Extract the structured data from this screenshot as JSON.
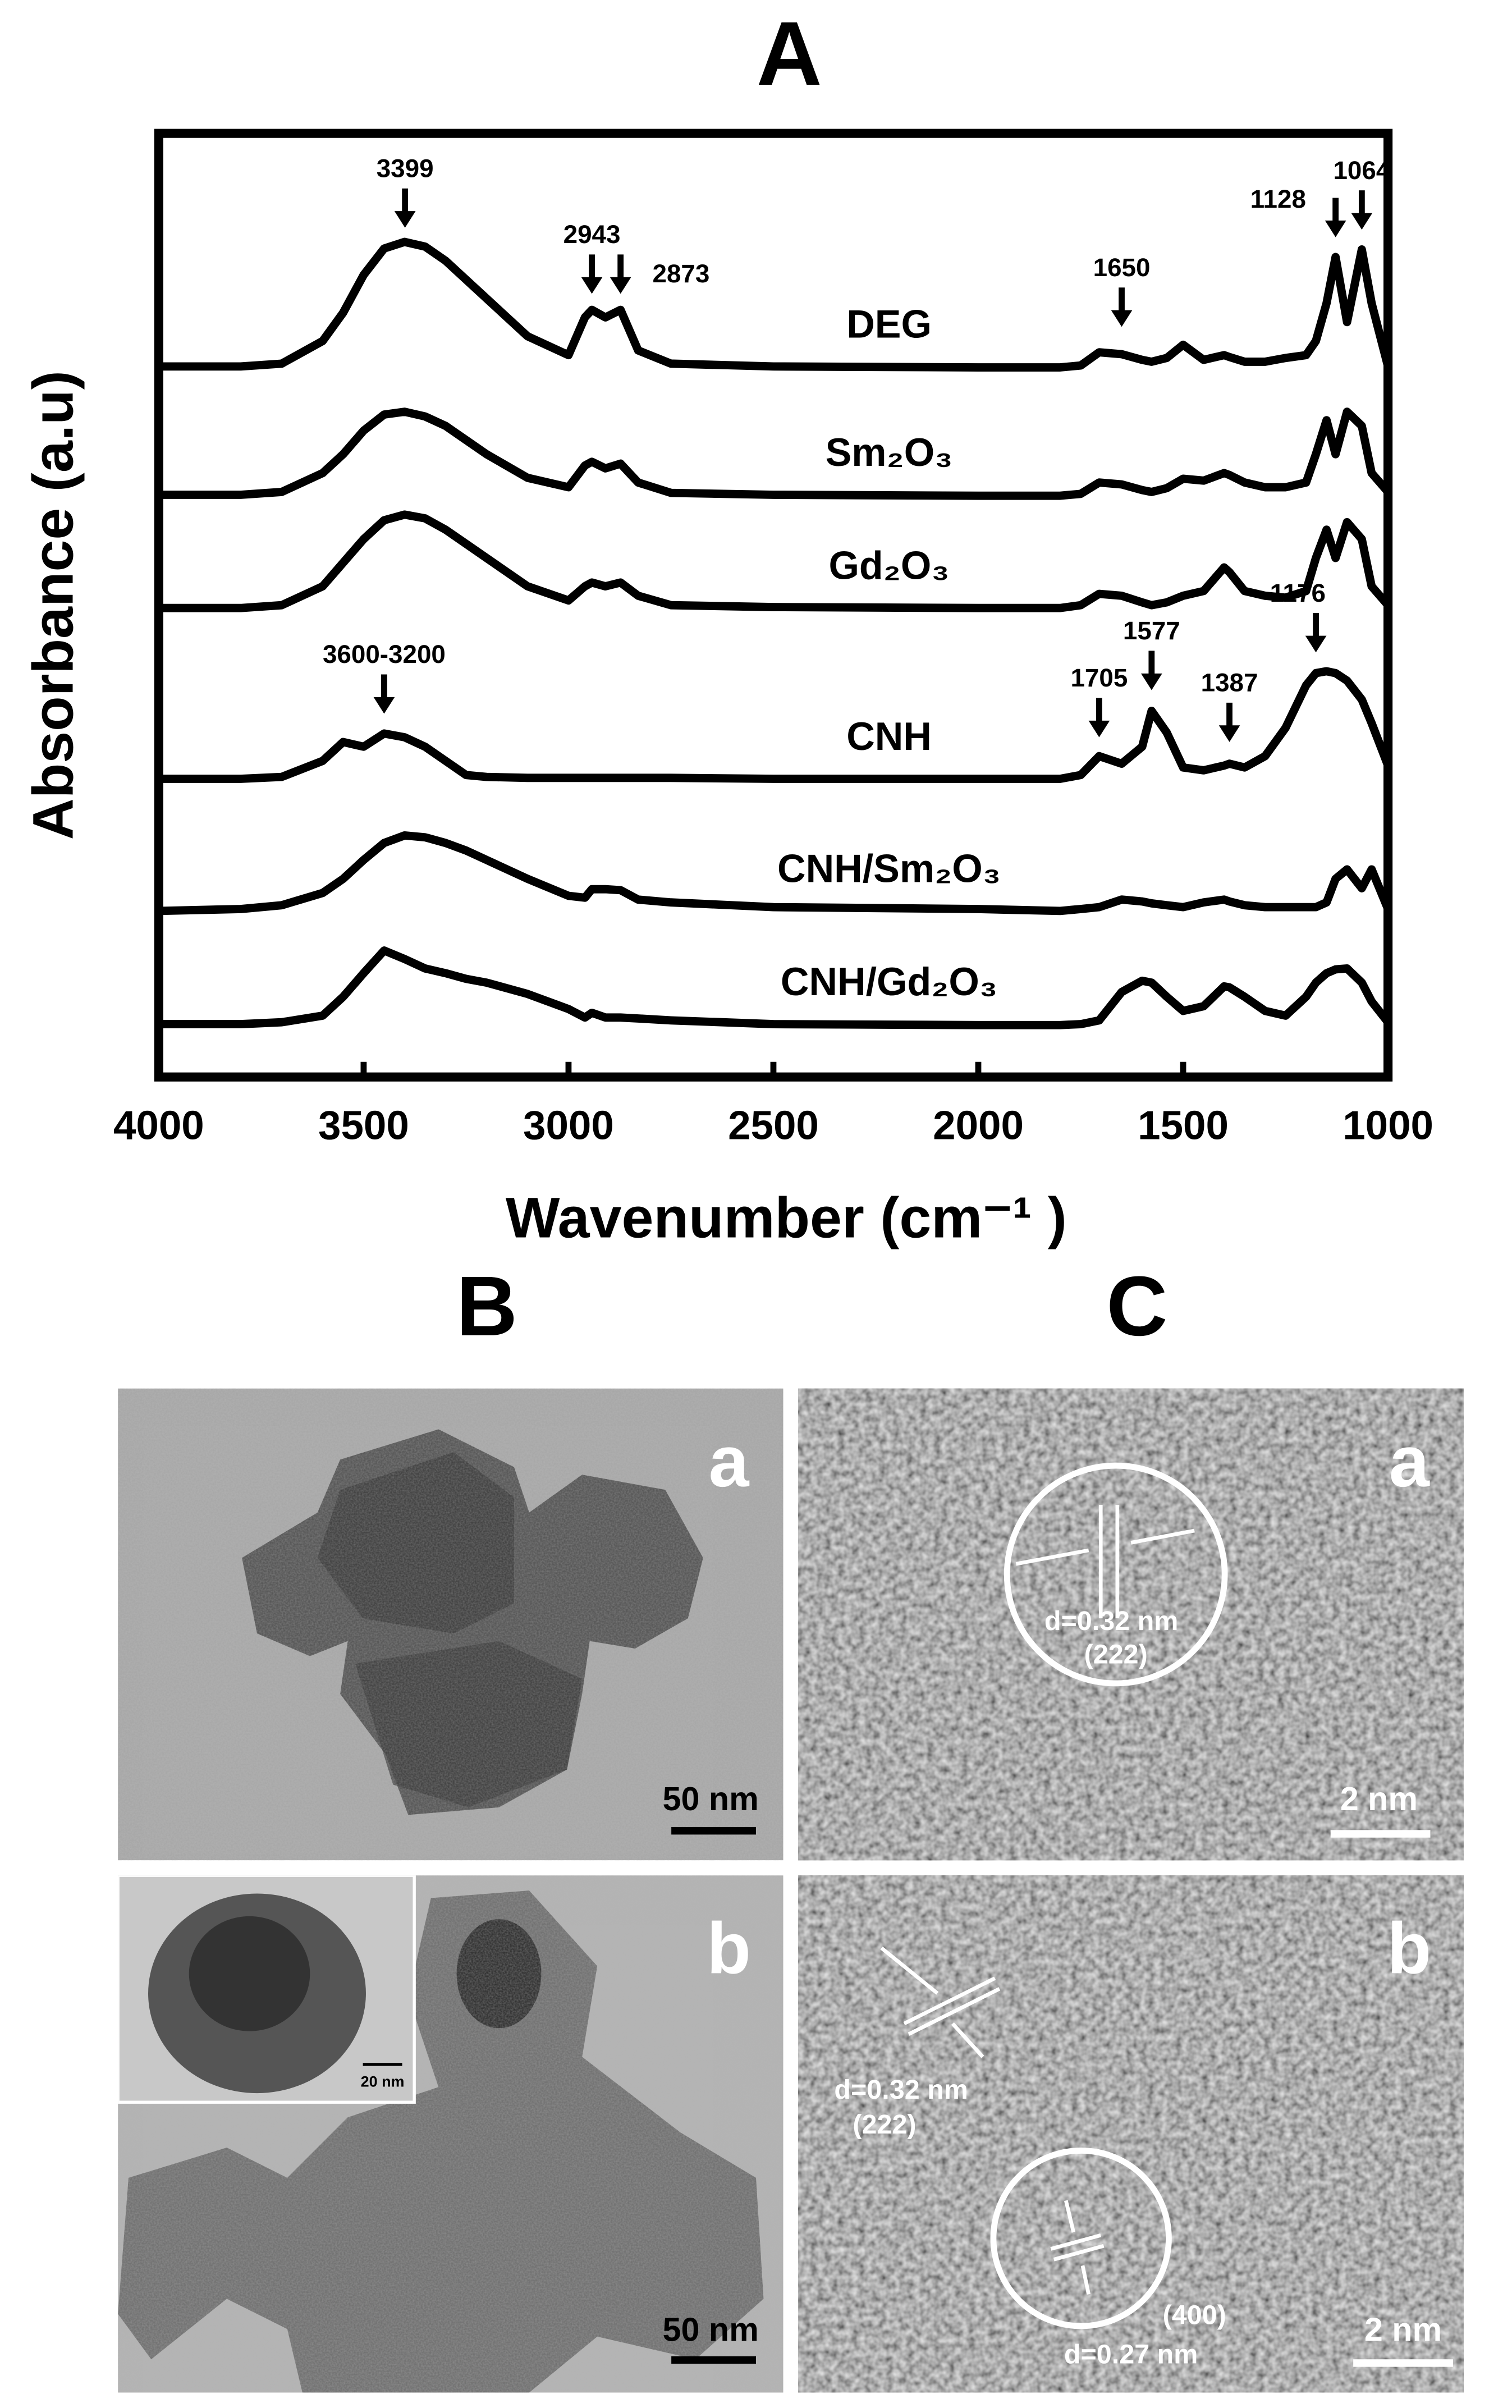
{
  "chart_data": {
    "type": "line",
    "title": "A",
    "x_label": "Wavenumber (cm⁻¹ )",
    "y_label": "Absorbance (a.u)",
    "x": [
      4000,
      3800,
      3700,
      3600,
      3550,
      3500,
      3450,
      3400,
      3350,
      3300,
      3250,
      3200,
      3100,
      3000,
      2960,
      2943,
      2910,
      2873,
      2830,
      2750,
      2500,
      2000,
      1800,
      1750,
      1705,
      1650,
      1600,
      1577,
      1540,
      1500,
      1450,
      1400,
      1387,
      1350,
      1300,
      1250,
      1200,
      1176,
      1150,
      1128,
      1100,
      1064,
      1040,
      1000
    ],
    "xlim": [
      4000,
      1000
    ],
    "xticks": [
      4000,
      3500,
      3000,
      2500,
      2000,
      1500,
      1000
    ],
    "ylim": [
      0,
      100
    ],
    "series": [
      {
        "name": "DEG",
        "color": "#000000",
        "values": [
          75.3,
          75.3,
          75.6,
          78,
          81,
          85,
          87.8,
          88.5,
          88,
          86.5,
          84.5,
          82.5,
          78.5,
          76.5,
          80.5,
          81.3,
          80.5,
          81.3,
          77,
          75.6,
          75.3,
          75.2,
          75.2,
          75.4,
          76.8,
          76.6,
          76,
          75.8,
          76.2,
          77.6,
          76,
          76.5,
          76.3,
          75.8,
          75.8,
          76.2,
          76.5,
          78,
          82,
          86.9,
          80,
          87.7,
          82,
          75.3
        ]
      },
      {
        "name": "Sm₂O₃",
        "color": "#000000",
        "values": [
          61.7,
          61.7,
          62,
          64,
          66,
          68.5,
          70.2,
          70.5,
          70,
          69,
          67.5,
          66,
          63.5,
          62.5,
          64.8,
          65.2,
          64.5,
          65,
          63,
          61.9,
          61.7,
          61.6,
          61.6,
          61.8,
          63,
          62.8,
          62.2,
          62,
          62.4,
          63.4,
          63.2,
          64,
          63.8,
          63,
          62.5,
          62.5,
          63,
          66,
          69.6,
          66,
          70.5,
          69,
          64,
          62
        ]
      },
      {
        "name": "Gd₂O₃",
        "color": "#000000",
        "values": [
          49.7,
          49.7,
          50,
          52,
          54.5,
          57,
          59,
          59.6,
          59.2,
          58,
          56.5,
          55,
          52,
          50.5,
          52,
          52.4,
          52,
          52.4,
          51,
          50,
          49.8,
          49.7,
          49.7,
          50,
          51.2,
          51,
          50.3,
          50,
          50.3,
          51,
          51.5,
          54,
          53.5,
          51.5,
          51,
          50.8,
          51.5,
          55,
          58,
          55,
          58.8,
          57,
          52,
          50
        ]
      },
      {
        "name": "CNH",
        "color": "#000000",
        "values": [
          31.6,
          31.6,
          31.8,
          33.5,
          35.5,
          35,
          36.4,
          36,
          35,
          33.5,
          32,
          31.8,
          31.7,
          31.7,
          31.7,
          31.7,
          31.7,
          31.7,
          31.7,
          31.7,
          31.6,
          31.6,
          31.6,
          32,
          34,
          33.2,
          35,
          38.8,
          36.5,
          32.8,
          32.5,
          33,
          33.2,
          32.8,
          34,
          37,
          41.5,
          42.8,
          43,
          42.8,
          42,
          40,
          37.5,
          33
        ]
      },
      {
        "name": "CNH/Sm₂O₃",
        "color": "#000000",
        "values": [
          17.6,
          17.8,
          18.2,
          19.5,
          21,
          23,
          24.8,
          25.6,
          25.4,
          24.8,
          24,
          23,
          21,
          19.2,
          19,
          19.9,
          19.9,
          19.8,
          18.8,
          18.5,
          18,
          17.8,
          17.6,
          17.8,
          18,
          18.8,
          18.6,
          18.4,
          18.2,
          18,
          18.5,
          18.8,
          18.6,
          18.2,
          18,
          18,
          18,
          18,
          18.5,
          21,
          22,
          20,
          22,
          17.8
        ]
      },
      {
        "name": "CNH/Gd₂O₃",
        "color": "#000000",
        "values": [
          5.6,
          5.6,
          5.8,
          6.5,
          8.5,
          11,
          13.4,
          12.5,
          11.5,
          11,
          10.4,
          10,
          8.8,
          7.2,
          6.3,
          6.8,
          6.3,
          6.3,
          6.2,
          6,
          5.6,
          5.5,
          5.5,
          5.6,
          6,
          9,
          10.2,
          10,
          8.5,
          7,
          7.5,
          9.6,
          9.5,
          8.5,
          7,
          6.5,
          8.5,
          10,
          11,
          11.4,
          11.5,
          10,
          8,
          5.8
        ]
      }
    ],
    "annotations": [
      {
        "label": "3399",
        "x": 3399,
        "y": 90
      },
      {
        "label": "2943",
        "x": 2943,
        "y": 83
      },
      {
        "label": "2873",
        "x": 2873,
        "y": 83
      },
      {
        "label": "1650",
        "x": 1650,
        "y": 79.5
      },
      {
        "label": "1128",
        "x": 1128,
        "y": 89
      },
      {
        "label": "1064",
        "x": 1064,
        "y": 89.8
      },
      {
        "label": "3600-3200",
        "x": 3450,
        "y": 38.5
      },
      {
        "label": "1705",
        "x": 1705,
        "y": 36
      },
      {
        "label": "1577",
        "x": 1577,
        "y": 41
      },
      {
        "label": "1387",
        "x": 1387,
        "y": 35.5
      },
      {
        "label": "1176",
        "x": 1176,
        "y": 45
      }
    ]
  },
  "panel_b": {
    "title": "B",
    "images": [
      {
        "label": "a",
        "scale_bar": "50 nm"
      },
      {
        "label": "b",
        "scale_bar": "50 nm",
        "inset_scale_bar": "20 nm"
      }
    ]
  },
  "panel_c": {
    "title": "C",
    "images": [
      {
        "label": "a",
        "scale_bar": "2 nm",
        "annotations": [
          "d=0.32 nm",
          "(222)"
        ]
      },
      {
        "label": "b",
        "scale_bar": "2 nm",
        "annotations": [
          "d=0.32 nm",
          "(222)",
          "(400)",
          "d=0.27 nm"
        ]
      }
    ]
  }
}
